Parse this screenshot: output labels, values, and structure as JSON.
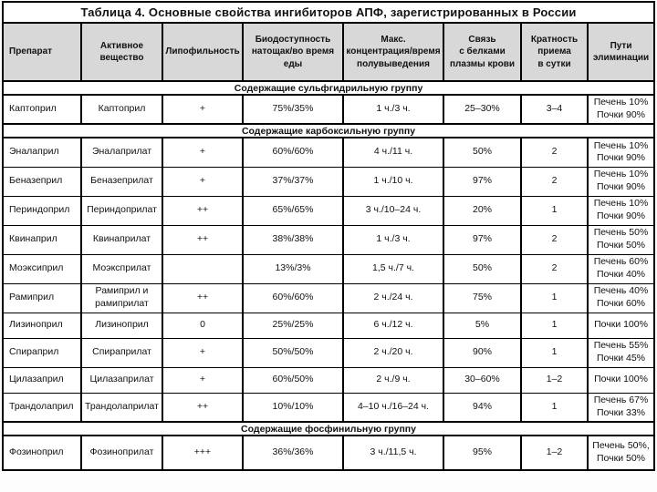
{
  "title": "Таблица 4. Основные свойства ингибиторов АПФ, зарегистрированных в России",
  "columns": [
    "Препарат",
    "Активное\nвещество",
    "Липофильность",
    "Биодоступность\nнатощак/во время\nеды",
    "Макс.\nконцентрация/время\nполувыведения",
    "Связь\nс белками\nплазмы крови",
    "Кратность\nприема\nв сутки",
    "Пути\nэлиминации"
  ],
  "sections": [
    {
      "group": "Содержащие сульфгидрильную группу",
      "rows": [
        [
          "Каптоприл",
          "Каптоприл",
          "+",
          "75%/35%",
          "1 ч./3 ч.",
          "25–30%",
          "3–4",
          "Печень 10%\nПочки 90%"
        ]
      ]
    },
    {
      "group": "Содержащие карбоксильную группу",
      "rows": [
        [
          "Эналаприл",
          "Эналаприлат",
          "+",
          "60%/60%",
          "4 ч./11 ч.",
          "50%",
          "2",
          "Печень 10%\nПочки 90%"
        ],
        [
          "Беназеприл",
          "Беназеприлат",
          "+",
          "37%/37%",
          "1 ч./10 ч.",
          "97%",
          "2",
          "Печень 10%\nПочки 90%"
        ],
        [
          "Периндоприл",
          "Периндоприлат",
          "++",
          "65%/65%",
          "3 ч./10–24 ч.",
          "20%",
          "1",
          "Печень 10%\nПочки 90%"
        ],
        [
          "Квинаприл",
          "Квинаприлат",
          "++",
          "38%/38%",
          "1 ч./3 ч.",
          "97%",
          "2",
          "Печень 50%\nПочки 50%"
        ],
        [
          "Моэксиприл",
          "Моэксприлат",
          "",
          "13%/3%",
          "1,5 ч./7 ч.",
          "50%",
          "2",
          "Печень 60%\nПочки 40%"
        ],
        [
          "Рамиприл",
          "Рамиприл и\nрамиприлат",
          "++",
          "60%/60%",
          "2 ч./24 ч.",
          "75%",
          "1",
          "Печень 40%\nПочки 60%"
        ],
        [
          "Лизиноприл",
          "Лизиноприл",
          "0",
          "25%/25%",
          "6 ч./12 ч.",
          "5%",
          "1",
          "Почки 100%"
        ],
        [
          "Спираприл",
          "Спираприлат",
          "+",
          "50%/50%",
          "2 ч./20 ч.",
          "90%",
          "1",
          "Печень 55%\nПочки 45%"
        ],
        [
          "Цилазаприл",
          "Цилазаприлат",
          "+",
          "60%/50%",
          "2 ч./9 ч.",
          "30–60%",
          "1–2",
          "Почки 100%"
        ],
        [
          "Трандолаприл",
          "Трандолаприлат",
          "++",
          "10%/10%",
          "4–10 ч./16–24 ч.",
          "94%",
          "1",
          "Печень 67%\nПочки 33%"
        ]
      ]
    },
    {
      "group": "Содержащие фосфинильную группу",
      "rows": [
        [
          "Фозиноприл",
          "Фозиноприлат",
          "+++",
          "36%/36%",
          "3 ч./11,5 ч.",
          "95%",
          "1–2",
          "Печень 50%,\nПочки 50%"
        ]
      ]
    }
  ],
  "colors": {
    "header_bg": "#d8d8d8",
    "border": "#000000",
    "text": "#111111"
  }
}
